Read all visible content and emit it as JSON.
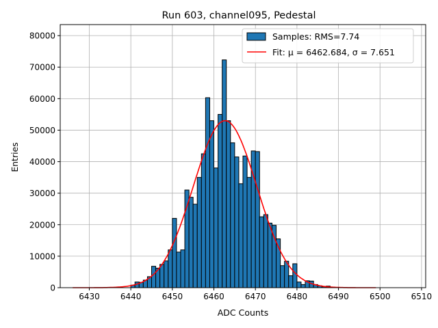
{
  "chart_data": {
    "type": "bar",
    "title": "Run 603, channel095, Pedestal",
    "xlabel": "ADC Counts",
    "ylabel": "Entries",
    "xlim": [
      6423,
      6511
    ],
    "ylim": [
      0,
      83500
    ],
    "grid": true,
    "legend_position": "top-right",
    "xticks": [
      6430,
      6440,
      6450,
      6460,
      6470,
      6480,
      6490,
      6500,
      6510
    ],
    "yticks": [
      0,
      10000,
      20000,
      30000,
      40000,
      50000,
      60000,
      70000,
      80000
    ],
    "bin_start": 6440,
    "bin_width": 1,
    "values": [
      800,
      1800,
      1700,
      2400,
      3500,
      6800,
      6200,
      7400,
      8500,
      12000,
      22000,
      11300,
      12000,
      31000,
      28700,
      26500,
      35000,
      42500,
      60300,
      53000,
      38000,
      55000,
      72300,
      53000,
      46000,
      41500,
      33000,
      41800,
      35000,
      43400,
      43200,
      22500,
      23200,
      20500,
      19800,
      15500,
      7000,
      8400,
      3800,
      7600,
      1800,
      1000,
      2200,
      2100,
      1000,
      600,
      300,
      500,
      100
    ],
    "series": [
      {
        "name": "Samples: RMS=7.74",
        "type": "histogram",
        "color": "#1f77b4"
      },
      {
        "name": "Fit: μ = 6462.684, σ = 7.651",
        "type": "line",
        "color": "#ff0000",
        "mu": 6462.684,
        "sigma": 7.651,
        "amplitude": 53000,
        "x_range": [
          6426,
          6499
        ]
      }
    ]
  }
}
